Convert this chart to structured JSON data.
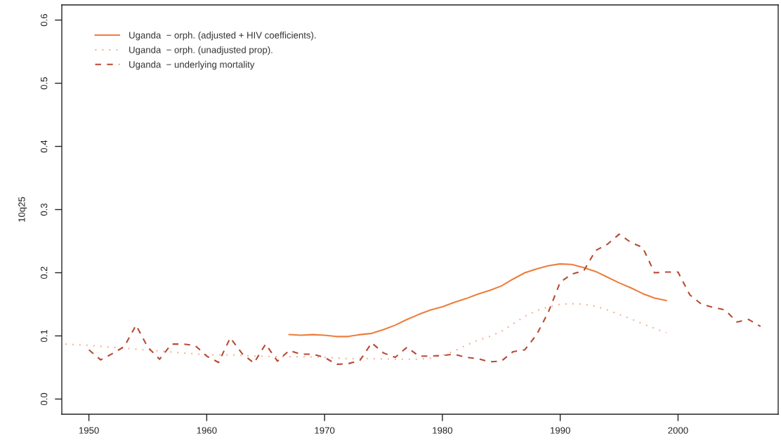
{
  "chart_data": {
    "type": "line",
    "ylabel": "10q25",
    "xlim": [
      1947.7,
      2008.5
    ],
    "xticks": [
      1950,
      1960,
      1970,
      1980,
      1990,
      2000
    ],
    "ylim": [
      -0.024,
      0.624
    ],
    "yticks": [
      {
        "value": 0,
        "label": "0.0"
      },
      0.1,
      0.2,
      0.3,
      0.4,
      0.5,
      0.6
    ],
    "grid": false,
    "legend": "top left",
    "series": [
      {
        "name": "Uganda  − orph. (adjusted + HIV coefficients).",
        "color": "#ee7d3c",
        "line_style": "solid",
        "x": [
          1967,
          1968,
          1969,
          1970,
          1971,
          1972,
          1973,
          1974,
          1975,
          1976,
          1977,
          1978,
          1979,
          1980,
          1981,
          1982,
          1983,
          1984,
          1985,
          1986,
          1987,
          1988,
          1989,
          1990,
          1991,
          1992,
          1993,
          1994,
          1995,
          1996,
          1997,
          1998,
          1999
        ],
        "values": [
          0.102,
          0.101,
          0.102,
          0.101,
          0.099,
          0.099,
          0.102,
          0.104,
          0.11,
          0.117,
          0.126,
          0.134,
          0.141,
          0.146,
          0.153,
          0.159,
          0.166,
          0.172,
          0.179,
          0.19,
          0.2,
          0.206,
          0.211,
          0.214,
          0.213,
          0.208,
          0.202,
          0.193,
          0.184,
          0.176,
          0.167,
          0.16,
          0.156
        ]
      },
      {
        "name": "Uganda  − orph. (unadjusted prop).",
        "color": "#f4a283",
        "line_style": "dotted",
        "x": [
          1948,
          1950,
          1952,
          1954,
          1956,
          1958,
          1960,
          1962,
          1964,
          1966,
          1968,
          1970,
          1972,
          1974,
          1976,
          1978,
          1979,
          1980,
          1981,
          1982,
          1983,
          1984,
          1985,
          1986,
          1987,
          1988,
          1989,
          1990,
          1991,
          1992,
          1993,
          1994,
          1995,
          1996,
          1997,
          1998,
          1999
        ],
        "values": [
          0.087,
          0.085,
          0.082,
          0.079,
          0.076,
          0.073,
          0.07,
          0.07,
          0.068,
          0.067,
          0.067,
          0.066,
          0.064,
          0.064,
          0.063,
          0.063,
          0.065,
          0.069,
          0.076,
          0.085,
          0.093,
          0.099,
          0.107,
          0.119,
          0.131,
          0.14,
          0.146,
          0.15,
          0.151,
          0.15,
          0.147,
          0.141,
          0.134,
          0.127,
          0.119,
          0.112,
          0.105
        ]
      },
      {
        "name": "Uganda  − underlying mortality",
        "color": "#b84a33",
        "line_style": "dashed",
        "x": [
          1950,
          1951,
          1952,
          1953,
          1954,
          1955,
          1956,
          1957,
          1958,
          1959,
          1960,
          1961,
          1962,
          1963,
          1964,
          1965,
          1966,
          1967,
          1968,
          1969,
          1970,
          1971,
          1972,
          1973,
          1974,
          1975,
          1976,
          1977,
          1978,
          1979,
          1980,
          1981,
          1982,
          1983,
          1984,
          1985,
          1986,
          1987,
          1988,
          1989,
          1990,
          1991,
          1992,
          1993,
          1994,
          1995,
          1996,
          1997,
          1998,
          1999,
          2000,
          2001,
          2002,
          2003,
          2004,
          2005,
          2006,
          2007
        ],
        "values": [
          0.078,
          0.062,
          0.072,
          0.083,
          0.117,
          0.082,
          0.063,
          0.087,
          0.087,
          0.085,
          0.068,
          0.058,
          0.097,
          0.072,
          0.057,
          0.087,
          0.06,
          0.077,
          0.071,
          0.071,
          0.066,
          0.055,
          0.056,
          0.061,
          0.089,
          0.073,
          0.066,
          0.082,
          0.068,
          0.068,
          0.069,
          0.071,
          0.066,
          0.064,
          0.059,
          0.06,
          0.075,
          0.078,
          0.102,
          0.138,
          0.185,
          0.198,
          0.203,
          0.235,
          0.245,
          0.261,
          0.248,
          0.24,
          0.2,
          0.201,
          0.201,
          0.165,
          0.15,
          0.145,
          0.141,
          0.122,
          0.126,
          0.115
        ]
      }
    ]
  }
}
